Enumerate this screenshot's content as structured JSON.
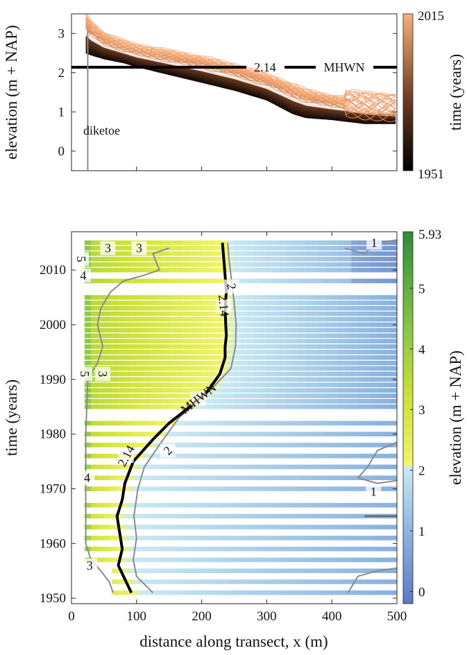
{
  "chart_data": [
    {
      "type": "line",
      "ylabel": "elevation (m + NAP)",
      "xlim": [
        0,
        500
      ],
      "ylim": [
        -0.5,
        3.5
      ],
      "yticks": [
        0,
        1,
        2,
        3
      ],
      "grid": false,
      "colorbar": {
        "label": "time (years)",
        "ticks": [
          1951,
          2015
        ],
        "colors": [
          "#000000",
          "#f9b07b"
        ]
      },
      "reference_line": {
        "value": 2.14,
        "value_label": "2.14",
        "label": "MHWN"
      },
      "annotation": {
        "x": 25,
        "label": "diketoe"
      },
      "profiles_from_year": 1951,
      "profiles_to_year": 2015,
      "profile_x": [
        22,
        30,
        50,
        80,
        100,
        150,
        200,
        250,
        300,
        340,
        360,
        400,
        450,
        500
      ],
      "profile_first": [
        2.5,
        2.45,
        2.35,
        2.25,
        2.15,
        1.95,
        1.75,
        1.55,
        1.3,
        0.95,
        0.85,
        0.8,
        0.7,
        0.7
      ],
      "profile_last": [
        3.5,
        3.3,
        3.0,
        2.8,
        2.7,
        2.55,
        2.4,
        2.2,
        1.95,
        1.7,
        1.55,
        1.4,
        1.3,
        1.25
      ]
    },
    {
      "type": "heatmap",
      "xlabel": "distance along transect, x (m)",
      "ylabel": "time (years)",
      "xlim": [
        0,
        500
      ],
      "ylim": [
        1949,
        2017
      ],
      "xticks": [
        0,
        100,
        200,
        300,
        400,
        500
      ],
      "yticks": [
        1950,
        1960,
        1970,
        1980,
        1990,
        2000,
        2010
      ],
      "colorbar": {
        "label": "elevation (m + NAP)",
        "ticks": [
          0,
          1,
          2,
          3,
          4,
          5
        ],
        "max_label": "5.93",
        "range": [
          -0.2,
          5.93
        ]
      },
      "missing_years": [
        1952,
        1954,
        1956,
        1958,
        1960,
        1962,
        1964,
        1966,
        1968,
        1969,
        1971,
        1973,
        1975,
        1977,
        1979,
        1981,
        1983,
        1984,
        2006,
        2007,
        2009
      ],
      "mhwn_contour": {
        "value_label": "2.14",
        "label": "MHWN",
        "points": [
          [
            92,
            1951
          ],
          [
            80,
            1954
          ],
          [
            72,
            1956
          ],
          [
            78,
            1959
          ],
          [
            74,
            1962
          ],
          [
            70,
            1965
          ],
          [
            78,
            1968
          ],
          [
            82,
            1971
          ],
          [
            95,
            1975
          ],
          [
            125,
            1979
          ],
          [
            150,
            1982
          ],
          [
            182,
            1985
          ],
          [
            210,
            1988
          ],
          [
            228,
            1991
          ],
          [
            236,
            1994
          ],
          [
            236,
            1996
          ],
          [
            238,
            1998
          ],
          [
            237,
            2000
          ],
          [
            236,
            2003
          ],
          [
            238,
            2006
          ],
          [
            236,
            2009
          ],
          [
            234,
            2012
          ],
          [
            232,
            2015
          ]
        ]
      },
      "contour_2": {
        "label": "2",
        "points": [
          [
            125,
            1951
          ],
          [
            100,
            1954
          ],
          [
            95,
            1957
          ],
          [
            100,
            1961
          ],
          [
            96,
            1965
          ],
          [
            102,
            1970
          ],
          [
            112,
            1974
          ],
          [
            135,
            1978
          ],
          [
            165,
            1983
          ],
          [
            205,
            1987
          ],
          [
            245,
            1992
          ],
          [
            252,
            1996
          ],
          [
            253,
            2000
          ],
          [
            250,
            2004
          ],
          [
            246,
            2008
          ],
          [
            242,
            2012
          ],
          [
            240,
            2015
          ]
        ]
      },
      "contour_3": {
        "label": "3",
        "points": [
          [
            64,
            1951
          ],
          [
            58,
            1953
          ],
          [
            45,
            1955
          ],
          [
            30,
            1957
          ],
          [
            22,
            1960
          ],
          [
            22,
            1970
          ],
          [
            22,
            1980
          ],
          [
            25,
            1990
          ],
          [
            40,
            1993
          ],
          [
            48,
            1996
          ],
          [
            40,
            2000
          ],
          [
            45,
            2003
          ],
          [
            60,
            2006
          ],
          [
            80,
            2008
          ],
          [
            110,
            2009
          ],
          [
            135,
            2010
          ],
          [
            125,
            2013
          ],
          [
            150,
            2014
          ]
        ]
      },
      "contour_4": {
        "label": "4"
      },
      "contour_5": {
        "label": "5"
      },
      "contour_1": {
        "label": "1"
      }
    }
  ]
}
